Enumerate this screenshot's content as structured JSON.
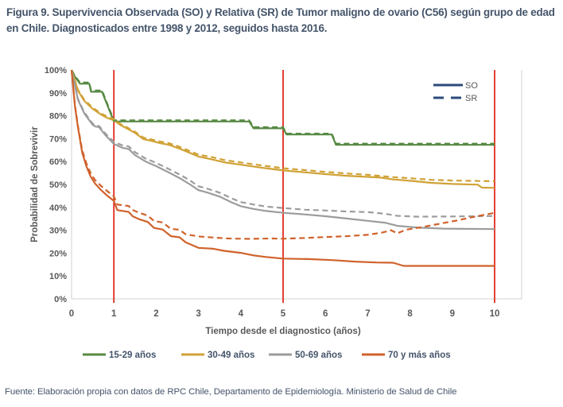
{
  "figure": {
    "title": "Figura 9. Supervivencia Observada (SO) y Relativa (SR) de Tumor maligno de ovario (C56) según grupo de edad en Chile. Diagnosticados entre 1998 y 2012, seguidos hasta 2016.",
    "source": "Fuente: Elaboración propia con datos de RPC Chile, Departamento de Epidemiología. Ministerio de Salud de Chile"
  },
  "colors": {
    "title_text": "#44546A",
    "axis_text": "#595959",
    "plot_border": "#d9d9d9",
    "reference_line": "#e02b20",
    "legend_line": "#2c4a7c",
    "green": "#578a43",
    "yellow": "#d0a236",
    "gray": "#9c9c9c",
    "orange": "#d0622b"
  },
  "chart_data": {
    "type": "line",
    "title": "",
    "xlabel": "Tiempo desde el diagnostico (años)",
    "ylabel": "Probabilidad de Sobrevivir",
    "xlim": [
      0,
      10
    ],
    "ylim": [
      0,
      100
    ],
    "x_ticks": [
      0,
      1,
      2,
      3,
      4,
      5,
      6,
      7,
      8,
      9,
      10
    ],
    "y_ticks": [
      0,
      10,
      20,
      30,
      40,
      50,
      60,
      70,
      80,
      90,
      100
    ],
    "y_tick_suffix": "%",
    "grid": false,
    "reference_lines_x": [
      1,
      5,
      10
    ],
    "line_type_legend": [
      {
        "label": "SO",
        "style": "solid"
      },
      {
        "label": "SR",
        "style": "dashed"
      }
    ],
    "legend_position": "bottom",
    "groups": [
      {
        "label": "15-29 años",
        "color": "#578a43"
      },
      {
        "label": "30-49 años",
        "color": "#d0a236"
      },
      {
        "label": "50-69 años",
        "color": "#9c9c9c"
      },
      {
        "label": "70 y más años",
        "color": "#d0622b"
      }
    ],
    "series": [
      {
        "group": "15-29 años",
        "measure": "SO",
        "style": "solid",
        "color": "#578a43",
        "points": [
          [
            0,
            100
          ],
          [
            0.08,
            97
          ],
          [
            0.2,
            94
          ],
          [
            0.42,
            94
          ],
          [
            0.46,
            90.5
          ],
          [
            0.72,
            90.5
          ],
          [
            1,
            77.5
          ],
          [
            4.2,
            77.5
          ],
          [
            4.3,
            74.5
          ],
          [
            5,
            74.5
          ],
          [
            5.08,
            71.8
          ],
          [
            6.15,
            71.8
          ],
          [
            6.25,
            67.3
          ],
          [
            10,
            67.3
          ]
        ]
      },
      {
        "group": "30-49 años",
        "measure": "SO",
        "style": "solid",
        "color": "#d0a236",
        "points": [
          [
            0,
            100
          ],
          [
            0.15,
            91
          ],
          [
            0.3,
            86.5
          ],
          [
            0.5,
            83
          ],
          [
            0.7,
            80.5
          ],
          [
            0.85,
            79
          ],
          [
            1,
            78
          ],
          [
            1.15,
            76
          ],
          [
            1.3,
            74.5
          ],
          [
            1.5,
            72.5
          ],
          [
            1.7,
            69.8
          ],
          [
            1.9,
            69
          ],
          [
            2.1,
            68
          ],
          [
            2.3,
            67.3
          ],
          [
            2.5,
            66
          ],
          [
            2.7,
            64.5
          ],
          [
            3,
            62.2
          ],
          [
            3.3,
            61
          ],
          [
            3.6,
            59.7
          ],
          [
            4,
            58.6
          ],
          [
            4.5,
            57.3
          ],
          [
            5,
            56.1
          ],
          [
            5.5,
            55.3
          ],
          [
            6,
            54.5
          ],
          [
            6.5,
            53.8
          ],
          [
            7,
            53.3
          ],
          [
            7.3,
            53
          ],
          [
            7.6,
            52.2
          ],
          [
            8,
            51.6
          ],
          [
            8.5,
            50.7
          ],
          [
            9,
            50.2
          ],
          [
            9.6,
            49.9
          ],
          [
            9.7,
            48.6
          ],
          [
            10,
            48.5
          ]
        ]
      },
      {
        "group": "50-69 años",
        "measure": "SO",
        "style": "solid",
        "color": "#9c9c9c",
        "points": [
          [
            0,
            100
          ],
          [
            0.15,
            87
          ],
          [
            0.3,
            81
          ],
          [
            0.5,
            76
          ],
          [
            0.56,
            75.3
          ],
          [
            0.65,
            75
          ],
          [
            0.8,
            71.5
          ],
          [
            1,
            67.7
          ],
          [
            1.2,
            66
          ],
          [
            1.35,
            65.5
          ],
          [
            1.5,
            62.8
          ],
          [
            1.75,
            60
          ],
          [
            2,
            58
          ],
          [
            2.3,
            55.2
          ],
          [
            2.6,
            52.3
          ],
          [
            2.8,
            50
          ],
          [
            3,
            47.5
          ],
          [
            3.2,
            46.5
          ],
          [
            3.5,
            44.7
          ],
          [
            3.8,
            42
          ],
          [
            4,
            40.5
          ],
          [
            4.3,
            39.3
          ],
          [
            4.6,
            38.4
          ],
          [
            5,
            37.6
          ],
          [
            5.5,
            36.9
          ],
          [
            6,
            36.1
          ],
          [
            6.5,
            35.1
          ],
          [
            7,
            34.1
          ],
          [
            7.4,
            33.3
          ],
          [
            7.7,
            31.9
          ],
          [
            8.2,
            31.1
          ],
          [
            8.8,
            30.7
          ],
          [
            10,
            30.5
          ]
        ]
      },
      {
        "group": "70 y más años",
        "measure": "SO",
        "style": "solid",
        "color": "#d0622b",
        "points": [
          [
            0,
            100
          ],
          [
            0.08,
            84
          ],
          [
            0.15,
            75
          ],
          [
            0.25,
            64
          ],
          [
            0.35,
            58
          ],
          [
            0.45,
            53.5
          ],
          [
            0.55,
            50.5
          ],
          [
            0.7,
            47.5
          ],
          [
            0.85,
            45
          ],
          [
            1,
            42.8
          ],
          [
            1.08,
            38.8
          ],
          [
            1.35,
            38
          ],
          [
            1.45,
            36
          ],
          [
            1.6,
            34.8
          ],
          [
            1.8,
            33.6
          ],
          [
            1.95,
            31
          ],
          [
            2.15,
            30.3
          ],
          [
            2.35,
            27.4
          ],
          [
            2.55,
            26.9
          ],
          [
            2.7,
            24.7
          ],
          [
            3,
            22.3
          ],
          [
            3.35,
            21.9
          ],
          [
            3.6,
            21
          ],
          [
            4,
            20.1
          ],
          [
            4.3,
            19
          ],
          [
            4.6,
            18.3
          ],
          [
            5,
            17.6
          ],
          [
            5.6,
            17.4
          ],
          [
            6.2,
            16.9
          ],
          [
            6.7,
            16.3
          ],
          [
            7.2,
            15.9
          ],
          [
            7.6,
            15.8
          ],
          [
            7.85,
            14.4
          ],
          [
            10,
            14.4
          ]
        ]
      },
      {
        "group": "15-29 años",
        "measure": "SR",
        "style": "dashed",
        "color": "#578a43",
        "points": [
          [
            0,
            100
          ],
          [
            0.08,
            97.3
          ],
          [
            0.2,
            94.5
          ],
          [
            0.42,
            94.5
          ],
          [
            0.46,
            91
          ],
          [
            0.72,
            91
          ],
          [
            1,
            78
          ],
          [
            4.2,
            78
          ],
          [
            4.3,
            75
          ],
          [
            5,
            75
          ],
          [
            5.08,
            72.2
          ],
          [
            6.15,
            72.2
          ],
          [
            6.25,
            67.8
          ],
          [
            10,
            67.8
          ]
        ]
      },
      {
        "group": "30-49 años",
        "measure": "SR",
        "style": "dashed",
        "color": "#d0a236",
        "points": [
          [
            0,
            100
          ],
          [
            0.15,
            91.4
          ],
          [
            0.3,
            87
          ],
          [
            0.5,
            83.5
          ],
          [
            0.7,
            81
          ],
          [
            0.85,
            79.5
          ],
          [
            1,
            78.5
          ],
          [
            1.15,
            76.5
          ],
          [
            1.3,
            75
          ],
          [
            1.5,
            73
          ],
          [
            1.7,
            70.4
          ],
          [
            1.9,
            69.6
          ],
          [
            2.1,
            68.7
          ],
          [
            2.3,
            68
          ],
          [
            2.5,
            66.8
          ],
          [
            2.7,
            65.3
          ],
          [
            3,
            63
          ],
          [
            3.3,
            62
          ],
          [
            3.6,
            60.7
          ],
          [
            4,
            59.6
          ],
          [
            4.5,
            58.3
          ],
          [
            5,
            57.1
          ],
          [
            5.5,
            56.3
          ],
          [
            6,
            55.5
          ],
          [
            6.5,
            54.8
          ],
          [
            7,
            54.2
          ],
          [
            7.6,
            53.2
          ],
          [
            8,
            52.7
          ],
          [
            8.5,
            52
          ],
          [
            9,
            51.7
          ],
          [
            10,
            51.4
          ]
        ]
      },
      {
        "group": "50-69 años",
        "measure": "SR",
        "style": "dashed",
        "color": "#9c9c9c",
        "points": [
          [
            0,
            100
          ],
          [
            0.15,
            87.4
          ],
          [
            0.3,
            81.5
          ],
          [
            0.5,
            76.5
          ],
          [
            0.56,
            75.8
          ],
          [
            0.65,
            75.5
          ],
          [
            0.8,
            72.2
          ],
          [
            1,
            68.6
          ],
          [
            1.2,
            67.1
          ],
          [
            1.35,
            66.6
          ],
          [
            1.5,
            64.1
          ],
          [
            1.75,
            61.3
          ],
          [
            2,
            59.4
          ],
          [
            2.3,
            56.7
          ],
          [
            2.6,
            53.9
          ],
          [
            2.8,
            51.7
          ],
          [
            3,
            49.2
          ],
          [
            3.2,
            48.2
          ],
          [
            3.5,
            46.4
          ],
          [
            3.8,
            43.8
          ],
          [
            4,
            42.3
          ],
          [
            4.3,
            41.2
          ],
          [
            4.6,
            40.3
          ],
          [
            5,
            39.7
          ],
          [
            5.5,
            39
          ],
          [
            6,
            38.6
          ],
          [
            6.5,
            38.2
          ],
          [
            7,
            37.9
          ],
          [
            7.4,
            37.2
          ],
          [
            7.7,
            36.3
          ],
          [
            8.2,
            35.9
          ],
          [
            9,
            36
          ],
          [
            9.5,
            36.1
          ],
          [
            10,
            36.2
          ]
        ]
      },
      {
        "group": "70 y más años",
        "measure": "SR",
        "style": "dashed",
        "color": "#d0622b",
        "points": [
          [
            0,
            100
          ],
          [
            0.08,
            84.4
          ],
          [
            0.15,
            75.6
          ],
          [
            0.25,
            65
          ],
          [
            0.35,
            59.2
          ],
          [
            0.45,
            55
          ],
          [
            0.55,
            52
          ],
          [
            0.7,
            49.3
          ],
          [
            0.85,
            47
          ],
          [
            1,
            44.8
          ],
          [
            1.08,
            41.2
          ],
          [
            1.35,
            40.6
          ],
          [
            1.45,
            38.8
          ],
          [
            1.6,
            37.6
          ],
          [
            1.8,
            36.4
          ],
          [
            1.95,
            34
          ],
          [
            2.15,
            33.4
          ],
          [
            2.35,
            30.6
          ],
          [
            2.55,
            30.2
          ],
          [
            2.7,
            28.2
          ],
          [
            3,
            27.3
          ],
          [
            3.35,
            26.8
          ],
          [
            3.7,
            26.4
          ],
          [
            4.2,
            26.2
          ],
          [
            4.7,
            26.4
          ],
          [
            5,
            26.3
          ],
          [
            5.5,
            26.6
          ],
          [
            6,
            27
          ],
          [
            6.5,
            27.4
          ],
          [
            7,
            28
          ],
          [
            7.35,
            29
          ],
          [
            7.55,
            30
          ],
          [
            7.7,
            28.6
          ],
          [
            7.9,
            30.2
          ],
          [
            8.3,
            31.4
          ],
          [
            8.7,
            32.8
          ],
          [
            9.1,
            34.2
          ],
          [
            9.5,
            35.8
          ],
          [
            10,
            37.6
          ]
        ]
      }
    ]
  }
}
